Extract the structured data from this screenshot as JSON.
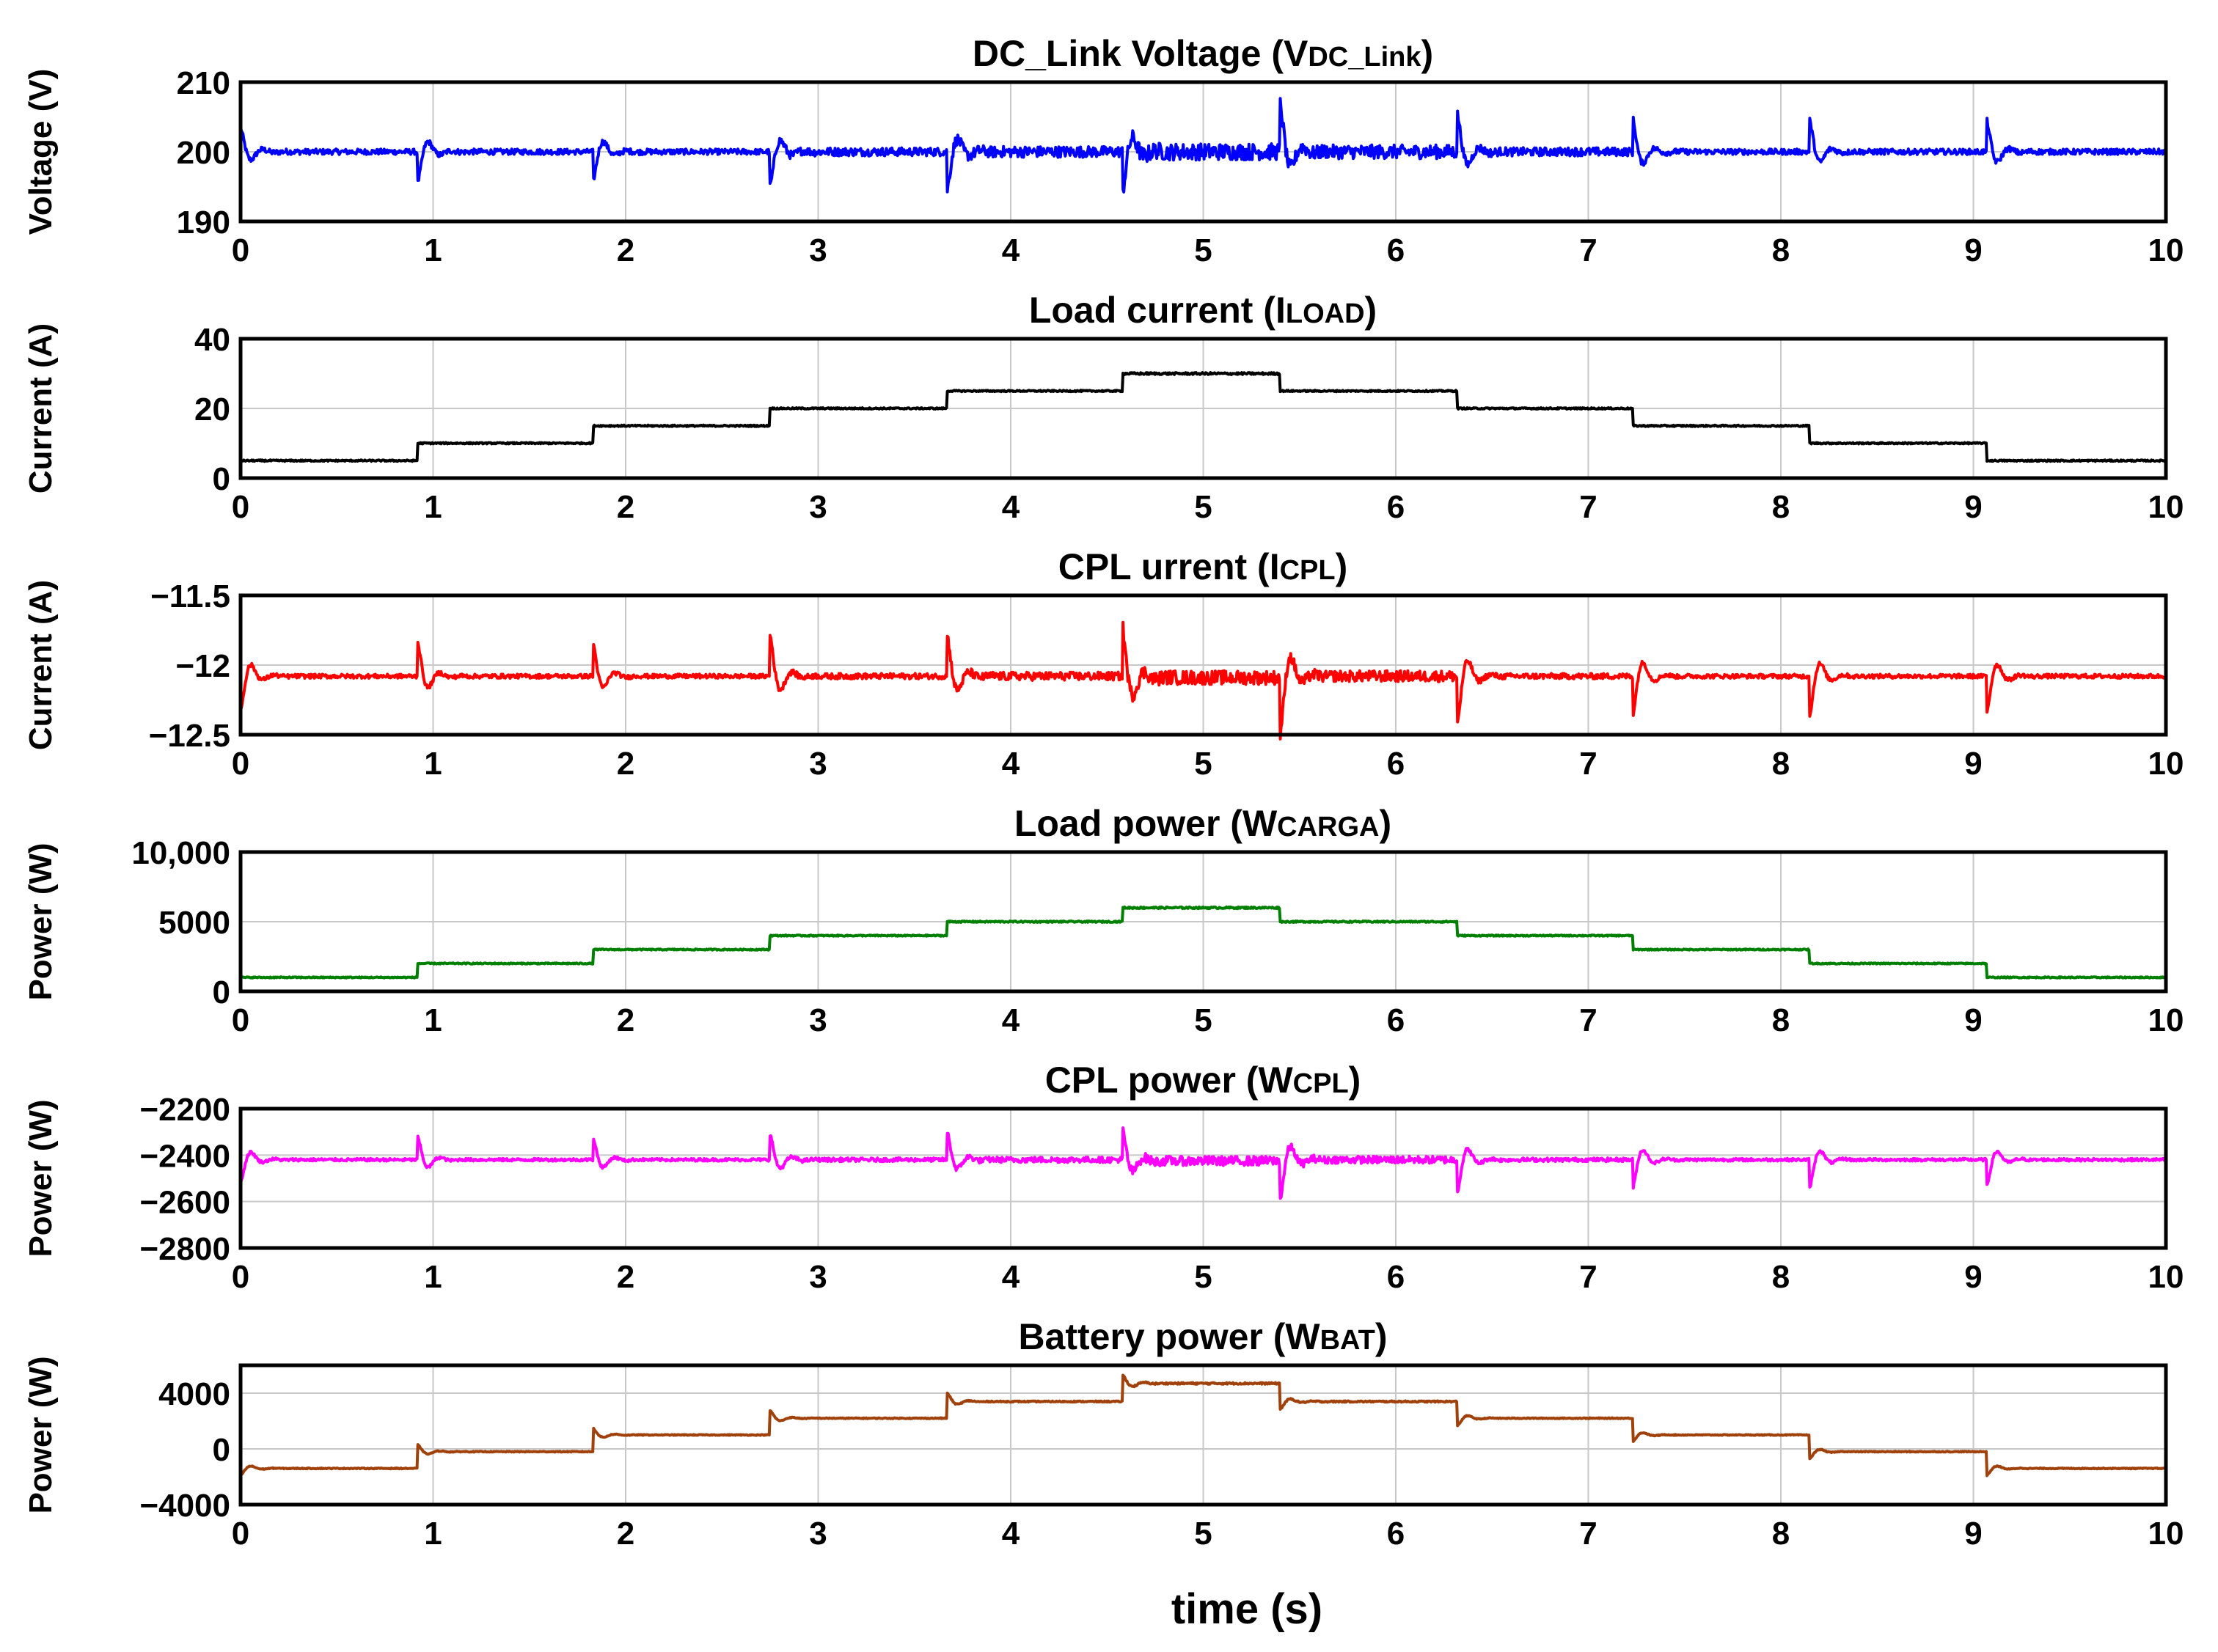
{
  "chart_data": [
    {
      "type": "line",
      "title_main": "DC_Link Voltage (V",
      "title_sub": "DC_Link",
      "title_end": ")",
      "ylabel": "Voltage (V)",
      "xlabel": "",
      "xlim": [
        0,
        10
      ],
      "ylim": [
        190,
        210
      ],
      "yticks": [
        190,
        200,
        210
      ],
      "ytick_labels": [
        "190",
        "200",
        "210"
      ],
      "xtick_labels": [
        "0",
        "1",
        "2",
        "3",
        "4",
        "5",
        "6",
        "7",
        "8",
        "9",
        "10"
      ],
      "color": "#0000ff",
      "series": [
        {
          "name": "VDC_Link",
          "step_times": [
            0,
            0.92,
            1.83,
            2.75,
            3.67,
            4.58,
            5.4,
            6.32,
            7.23,
            8.15,
            9.07
          ],
          "levels": [
            200,
            200,
            200,
            200,
            200,
            200,
            200,
            200,
            200,
            200,
            200
          ],
          "transient_peaks": [
            3.5,
            -4.5,
            -4.5,
            -5,
            -5.5,
            -6,
            7,
            5.5,
            5,
            4.5,
            4.5
          ],
          "ripple": [
            0.4,
            0.4,
            0.4,
            0.6,
            0.8,
            1.2,
            1.0,
            0.6,
            0.4,
            0.4,
            0.4
          ]
        }
      ]
    },
    {
      "type": "line",
      "title_main": "Load current (I",
      "title_sub": "LOAD",
      "title_end": ")",
      "ylabel": "Current (A)",
      "xlabel": "",
      "xlim": [
        0,
        10
      ],
      "ylim": [
        0,
        40
      ],
      "yticks": [
        0,
        20,
        40
      ],
      "ytick_labels": [
        "0",
        "20",
        "40"
      ],
      "xtick_labels": [
        "0",
        "1",
        "2",
        "3",
        "4",
        "5",
        "6",
        "7",
        "8",
        "9",
        "10"
      ],
      "color": "#000000",
      "series": [
        {
          "name": "ILOAD",
          "step_times": [
            0,
            0.92,
            1.83,
            2.75,
            3.67,
            4.58,
            5.4,
            6.32,
            7.23,
            8.15,
            9.07
          ],
          "levels": [
            5,
            10,
            15,
            20,
            25,
            30,
            25,
            20,
            15,
            10,
            5
          ],
          "transient_peaks": [
            0,
            0,
            0,
            0,
            0,
            0,
            0,
            0,
            0,
            0,
            0
          ],
          "ripple": [
            0.2,
            0.2,
            0.2,
            0.2,
            0.2,
            0.3,
            0.2,
            0.2,
            0.2,
            0.2,
            0.2
          ]
        }
      ]
    },
    {
      "type": "line",
      "title_main": "CPL urrent (I",
      "title_sub": "CPL",
      "title_end": ")",
      "ylabel": "Current (A)",
      "xlabel": "",
      "xlim": [
        0,
        10
      ],
      "ylim": [
        -12.5,
        -11.5
      ],
      "yticks": [
        -12.5,
        -12,
        -11.5
      ],
      "ytick_labels": [
        "−12.5",
        "−12",
        "−11.5"
      ],
      "xtick_labels": [
        "0",
        "1",
        "2",
        "3",
        "4",
        "5",
        "6",
        "7",
        "8",
        "9",
        "10"
      ],
      "color": "#ff0000",
      "series": [
        {
          "name": "ICPL",
          "step_times": [
            0,
            0.92,
            1.83,
            2.75,
            3.67,
            4.58,
            5.4,
            6.32,
            7.23,
            8.15,
            9.07
          ],
          "levels": [
            -12.08,
            -12.08,
            -12.08,
            -12.08,
            -12.08,
            -12.09,
            -12.08,
            -12.08,
            -12.08,
            -12.08,
            -12.08
          ],
          "transient_peaks": [
            -0.25,
            0.25,
            0.25,
            0.3,
            0.3,
            0.38,
            -0.42,
            -0.34,
            -0.3,
            -0.28,
            -0.26
          ],
          "ripple": [
            0.015,
            0.015,
            0.015,
            0.02,
            0.03,
            0.05,
            0.04,
            0.02,
            0.015,
            0.015,
            0.015
          ]
        }
      ]
    },
    {
      "type": "line",
      "title_main": "Load power (W",
      "title_sub": "CARGA",
      "title_end": ")",
      "ylabel": "Power (W)",
      "xlabel": "",
      "xlim": [
        0,
        10
      ],
      "ylim": [
        0,
        10000
      ],
      "yticks": [
        0,
        5000,
        10000
      ],
      "ytick_labels": [
        "0",
        "5000",
        "10,000"
      ],
      "xtick_labels": [
        "0",
        "1",
        "2",
        "3",
        "4",
        "5",
        "6",
        "7",
        "8",
        "9",
        "10"
      ],
      "color": "#008000",
      "series": [
        {
          "name": "WCARGA",
          "step_times": [
            0,
            0.92,
            1.83,
            2.75,
            3.67,
            4.58,
            5.4,
            6.32,
            7.23,
            8.15,
            9.07
          ],
          "levels": [
            1000,
            2000,
            3000,
            4000,
            5000,
            6000,
            5000,
            4000,
            3000,
            2000,
            1000
          ],
          "transient_peaks": [
            0,
            0,
            0,
            0,
            0,
            0,
            0,
            0,
            0,
            0,
            0
          ],
          "ripple": [
            40,
            40,
            40,
            40,
            50,
            60,
            50,
            40,
            40,
            40,
            40
          ]
        }
      ]
    },
    {
      "type": "line",
      "title_main": "CPL power (W",
      "title_sub": "CPL",
      "title_end": ")",
      "ylabel": "Power (W)",
      "xlabel": "",
      "xlim": [
        0,
        10
      ],
      "ylim": [
        -2800,
        -2200
      ],
      "yticks": [
        -2800,
        -2600,
        -2400,
        -2200
      ],
      "ytick_labels": [
        "−2800",
        "−2600",
        "−2400",
        "−2200"
      ],
      "xtick_labels": [
        "0",
        "1",
        "2",
        "3",
        "4",
        "5",
        "6",
        "7",
        "8",
        "9",
        "10"
      ],
      "color": "#ff00ff",
      "series": [
        {
          "name": "WCPL",
          "step_times": [
            0,
            0.92,
            1.83,
            2.75,
            3.67,
            4.58,
            5.4,
            6.32,
            7.23,
            8.15,
            9.07
          ],
          "levels": [
            -2420,
            -2420,
            -2420,
            -2420,
            -2420,
            -2425,
            -2420,
            -2420,
            -2420,
            -2420,
            -2420
          ],
          "transient_peaks": [
            -100,
            100,
            100,
            110,
            120,
            140,
            -170,
            -140,
            -130,
            -120,
            -110
          ],
          "ripple": [
            6,
            6,
            6,
            8,
            12,
            20,
            16,
            8,
            6,
            6,
            6
          ]
        }
      ]
    },
    {
      "type": "line",
      "title_main": "Battery power (W",
      "title_sub": "BAT",
      "title_end": ")",
      "ylabel": "Power (W)",
      "xlabel": "time (s)",
      "xlim": [
        0,
        10
      ],
      "ylim": [
        -4000,
        6000
      ],
      "yticks": [
        -4000,
        0,
        4000
      ],
      "ytick_labels": [
        "−4000",
        "0",
        "4000"
      ],
      "xtick_labels": [
        "0",
        "1",
        "2",
        "3",
        "4",
        "5",
        "6",
        "7",
        "8",
        "9",
        "10"
      ],
      "color": "#a0400a",
      "series": [
        {
          "name": "WBAT",
          "step_times": [
            0,
            0.92,
            1.83,
            2.75,
            3.67,
            4.58,
            5.4,
            6.32,
            7.23,
            8.15,
            9.07
          ],
          "levels": [
            -1400,
            -200,
            1000,
            2200,
            3400,
            4700,
            3400,
            2200,
            1000,
            -200,
            -1400
          ],
          "transient_peaks": [
            -500,
            500,
            500,
            550,
            600,
            650,
            -550,
            -550,
            -500,
            -500,
            -500
          ],
          "ripple": [
            30,
            30,
            30,
            30,
            40,
            60,
            50,
            30,
            30,
            30,
            30
          ]
        }
      ]
    }
  ]
}
